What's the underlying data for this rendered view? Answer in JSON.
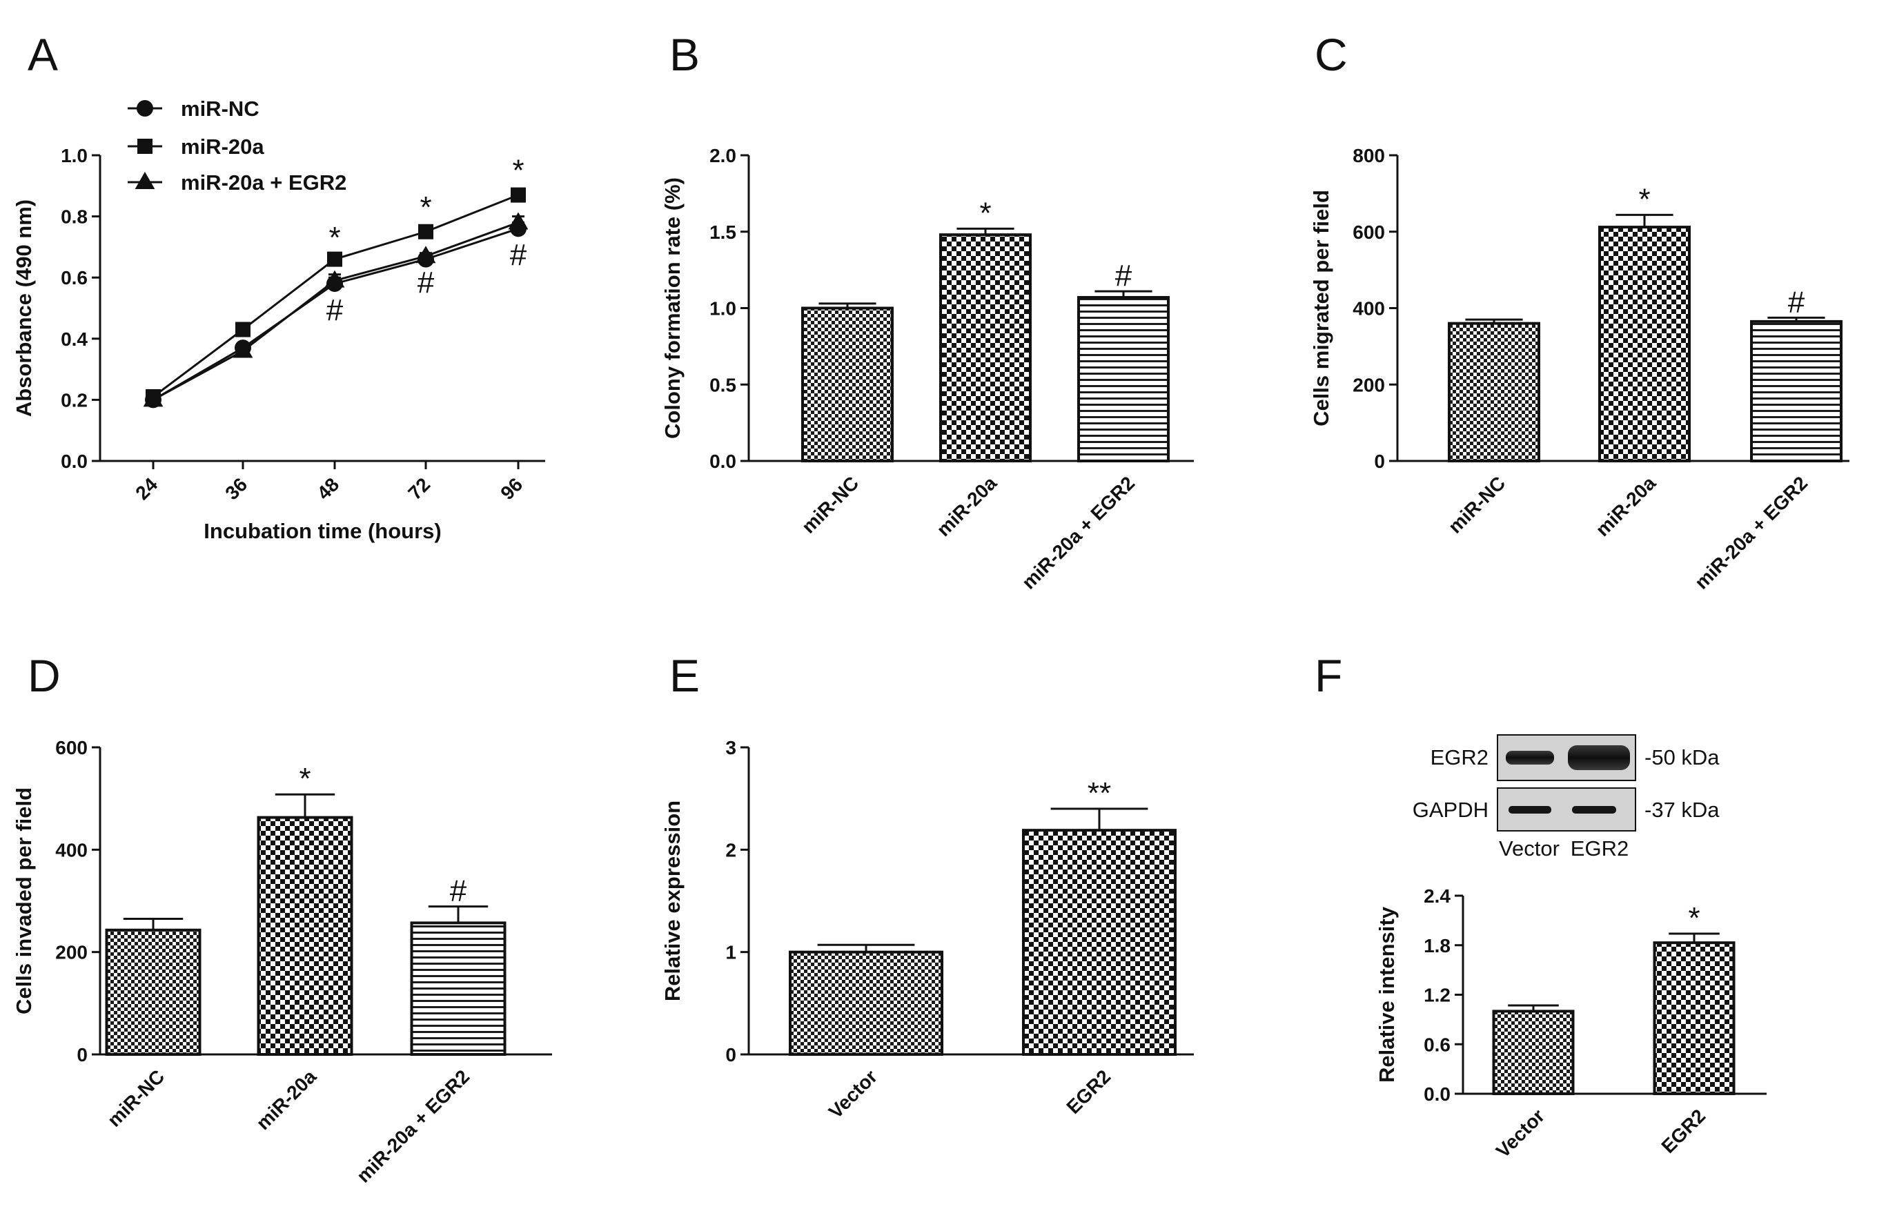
{
  "palette": {
    "ink": "#111111",
    "check": "#1a1a1a",
    "blot_bg": "#d2d2d2",
    "blot_band": "#151515"
  },
  "panels": {
    "A": {
      "label": "A"
    },
    "B": {
      "label": "B"
    },
    "C": {
      "label": "C"
    },
    "D": {
      "label": "D"
    },
    "E": {
      "label": "E"
    },
    "F": {
      "label": "F"
    }
  },
  "blot": {
    "rows": [
      "EGR2",
      "GAPDH"
    ],
    "sizes": [
      "-50 kDa",
      "-37 kDa"
    ],
    "lanes": [
      "Vector",
      "EGR2"
    ]
  },
  "chart_data": [
    {
      "panel": "A",
      "type": "line",
      "title": "",
      "xlabel": "Incubation time (hours)",
      "ylabel": "Absorbance (490 nm)",
      "x": [
        "24",
        "36",
        "48",
        "72",
        "96"
      ],
      "ylim": [
        0,
        1.0
      ],
      "yticks": [
        "0.0",
        "0.2",
        "0.4",
        "0.6",
        "0.8",
        "1.0"
      ],
      "legend_position": "top-left",
      "series": [
        {
          "name": "miR-NC",
          "marker": "circle",
          "values": [
            0.2,
            0.37,
            0.58,
            0.66,
            0.76
          ],
          "errors": [
            0.01,
            0.01,
            0.02,
            0.01,
            0.02
          ]
        },
        {
          "name": "miR-20a",
          "marker": "square",
          "values": [
            0.21,
            0.43,
            0.66,
            0.75,
            0.87
          ],
          "errors": [
            0.01,
            0.01,
            0.01,
            0.02,
            0.02
          ]
        },
        {
          "name": "miR-20a + EGR2",
          "marker": "triangle",
          "values": [
            0.2,
            0.36,
            0.59,
            0.67,
            0.78
          ],
          "errors": [
            0.01,
            0.01,
            0.02,
            0.01,
            0.02
          ]
        }
      ],
      "annotations": [
        {
          "x": "48",
          "text": "*"
        },
        {
          "x": "72",
          "text": "*"
        },
        {
          "x": "96",
          "text": "*"
        },
        {
          "x": "48",
          "text": "#"
        },
        {
          "x": "72",
          "text": "#"
        },
        {
          "x": "96",
          "text": "#"
        }
      ]
    },
    {
      "panel": "B",
      "type": "bar",
      "title": "",
      "xlabel": "",
      "ylabel": "Colony formation rate (%)",
      "categories": [
        "miR-NC",
        "miR-20a",
        "miR-20a + EGR2"
      ],
      "values": [
        1.0,
        1.48,
        1.07
      ],
      "errors": [
        0.03,
        0.04,
        0.04
      ],
      "patterns": [
        "check-small",
        "check-large",
        "stripes"
      ],
      "ylim": [
        0,
        2.0
      ],
      "yticks": [
        "0.0",
        "0.5",
        "1.0",
        "1.5",
        "2.0"
      ],
      "annotations": [
        "",
        "*",
        "#"
      ]
    },
    {
      "panel": "C",
      "type": "bar",
      "title": "",
      "xlabel": "",
      "ylabel": "Cells migrated per field",
      "categories": [
        "miR-NC",
        "miR-20a",
        "miR-20a + EGR2"
      ],
      "values": [
        360,
        612,
        365
      ],
      "errors": [
        10,
        32,
        10
      ],
      "patterns": [
        "check-small",
        "check-large",
        "stripes"
      ],
      "ylim": [
        0,
        800
      ],
      "yticks": [
        "0",
        "200",
        "400",
        "600",
        "800"
      ],
      "annotations": [
        "",
        "*",
        "#"
      ]
    },
    {
      "panel": "D",
      "type": "bar",
      "title": "",
      "xlabel": "",
      "ylabel": "Cells invaded per field",
      "categories": [
        "miR-NC",
        "miR-20a",
        "miR-20a + EGR2"
      ],
      "values": [
        243,
        463,
        257
      ],
      "errors": [
        22,
        45,
        32
      ],
      "patterns": [
        "check-small",
        "check-large",
        "stripes"
      ],
      "ylim": [
        0,
        600
      ],
      "yticks": [
        "0",
        "200",
        "400",
        "600"
      ],
      "annotations": [
        "",
        "*",
        "#"
      ]
    },
    {
      "panel": "E",
      "type": "bar",
      "title": "",
      "xlabel": "",
      "ylabel": "Relative expression",
      "categories": [
        "Vector",
        "EGR2"
      ],
      "values": [
        1.0,
        2.19
      ],
      "errors": [
        0.07,
        0.21
      ],
      "patterns": [
        "check-small",
        "check-large"
      ],
      "ylim": [
        0,
        3
      ],
      "yticks": [
        "0",
        "1",
        "2",
        "3"
      ],
      "annotations": [
        "",
        "**"
      ]
    },
    {
      "panel": "F",
      "type": "bar",
      "title": "",
      "xlabel": "",
      "ylabel": "Relative intensity",
      "categories": [
        "Vector",
        "EGR2"
      ],
      "values": [
        1.0,
        1.83
      ],
      "errors": [
        0.07,
        0.11
      ],
      "patterns": [
        "check-small",
        "check-large"
      ],
      "ylim": [
        0,
        2.4
      ],
      "yticks": [
        "0.0",
        "0.6",
        "1.2",
        "1.8",
        "2.4"
      ],
      "annotations": [
        "",
        "*"
      ]
    }
  ]
}
